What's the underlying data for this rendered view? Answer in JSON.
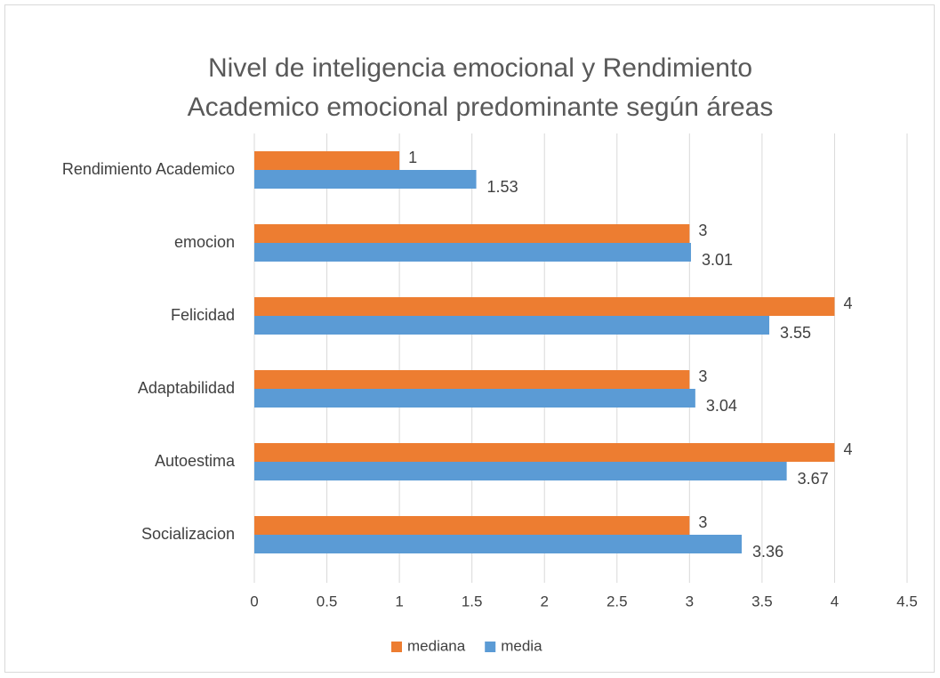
{
  "chart_data": {
    "type": "hbar",
    "title": [
      "Nivel de inteligencia emocional y Rendimiento",
      "Academico emocional predominante según áreas"
    ],
    "categories": [
      "Rendimiento Academico",
      "emocion",
      "Felicidad",
      "Adaptabilidad",
      "Autoestima",
      "Socializacion"
    ],
    "series": [
      {
        "name": "mediana",
        "color": "#ed7d31",
        "values": [
          1,
          3,
          4,
          3,
          4,
          3
        ]
      },
      {
        "name": "media",
        "color": "#5b9bd5",
        "values": [
          1.53,
          3.01,
          3.55,
          3.04,
          3.67,
          3.36
        ]
      }
    ],
    "xlim": [
      0,
      4.5
    ],
    "xticks": [
      0,
      0.5,
      1,
      1.5,
      2,
      2.5,
      3,
      3.5,
      4,
      4.5
    ],
    "grid": true,
    "legend": "bottom"
  }
}
